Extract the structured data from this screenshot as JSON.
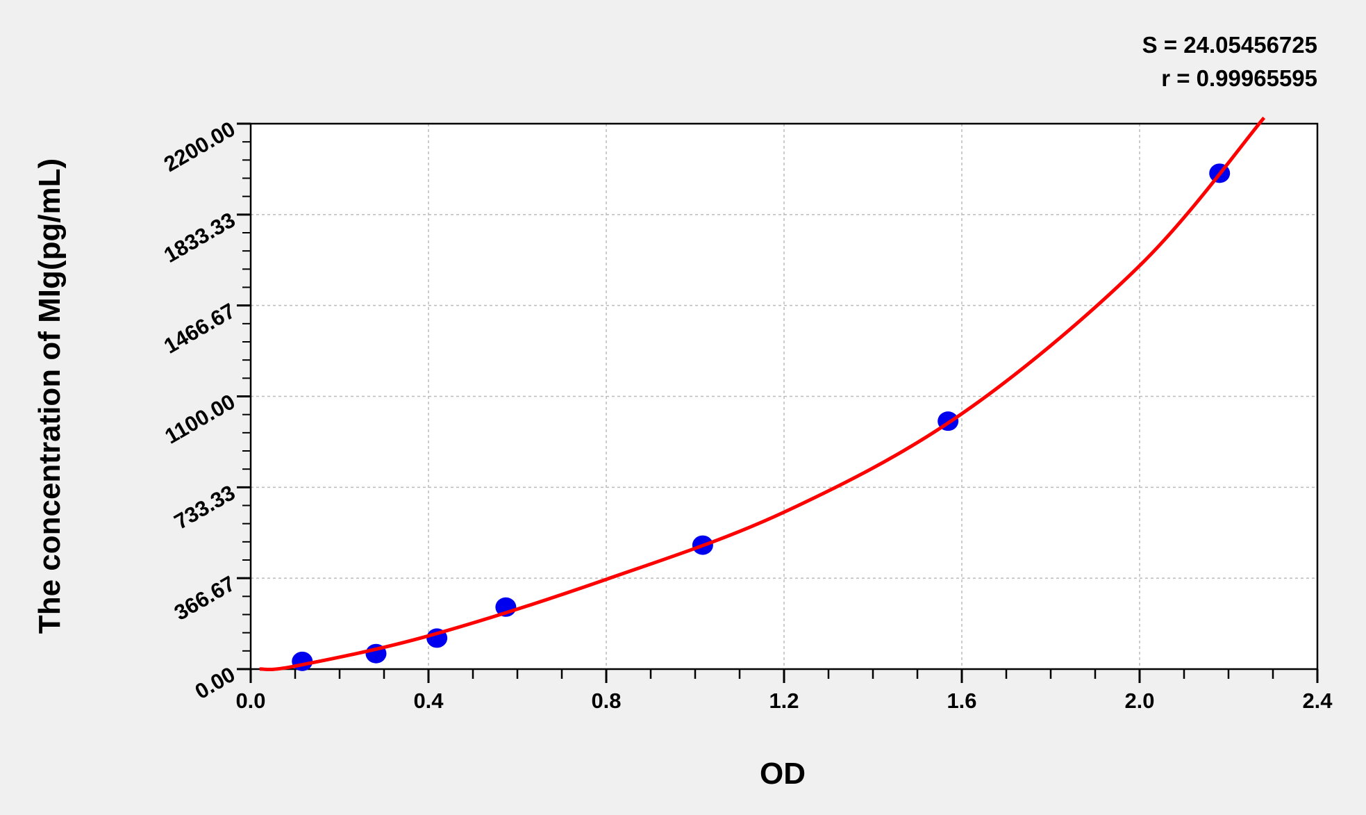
{
  "chart_data": {
    "type": "scatter",
    "xlabel": "OD",
    "ylabel": "The concentration of MIg(pg/mL)",
    "xlim": [
      0,
      2.4
    ],
    "ylim": [
      0,
      2200
    ],
    "x_ticks": [
      "0.0",
      "0.4",
      "0.8",
      "1.2",
      "1.6",
      "2.0",
      "2.4"
    ],
    "y_ticks": [
      "0.00",
      "366.67",
      "733.33",
      "1100.00",
      "1466.67",
      "1833.33",
      "2200.00"
    ],
    "grid": true,
    "annotations": {
      "s": "S = 24.05456725",
      "r": "r = 0.99965595"
    },
    "points": [
      {
        "x": 0.116,
        "y": 31.25
      },
      {
        "x": 0.282,
        "y": 62.5
      },
      {
        "x": 0.419,
        "y": 125
      },
      {
        "x": 0.574,
        "y": 250
      },
      {
        "x": 1.017,
        "y": 500
      },
      {
        "x": 1.569,
        "y": 1000
      },
      {
        "x": 2.18,
        "y": 2000
      }
    ],
    "fit_curve": [
      {
        "x": 0.02,
        "y": 0
      },
      {
        "x": 0.1,
        "y": 12
      },
      {
        "x": 0.4,
        "y": 134
      },
      {
        "x": 0.8,
        "y": 362
      },
      {
        "x": 1.2,
        "y": 633
      },
      {
        "x": 1.6,
        "y": 1030
      },
      {
        "x": 2.0,
        "y": 1627
      },
      {
        "x": 2.28,
        "y": 2224
      }
    ],
    "colors": {
      "points": "#0000ee",
      "curve": "#ff0000",
      "plot_bg": "#ffffff",
      "page_bg": "#f0f0f0"
    }
  }
}
